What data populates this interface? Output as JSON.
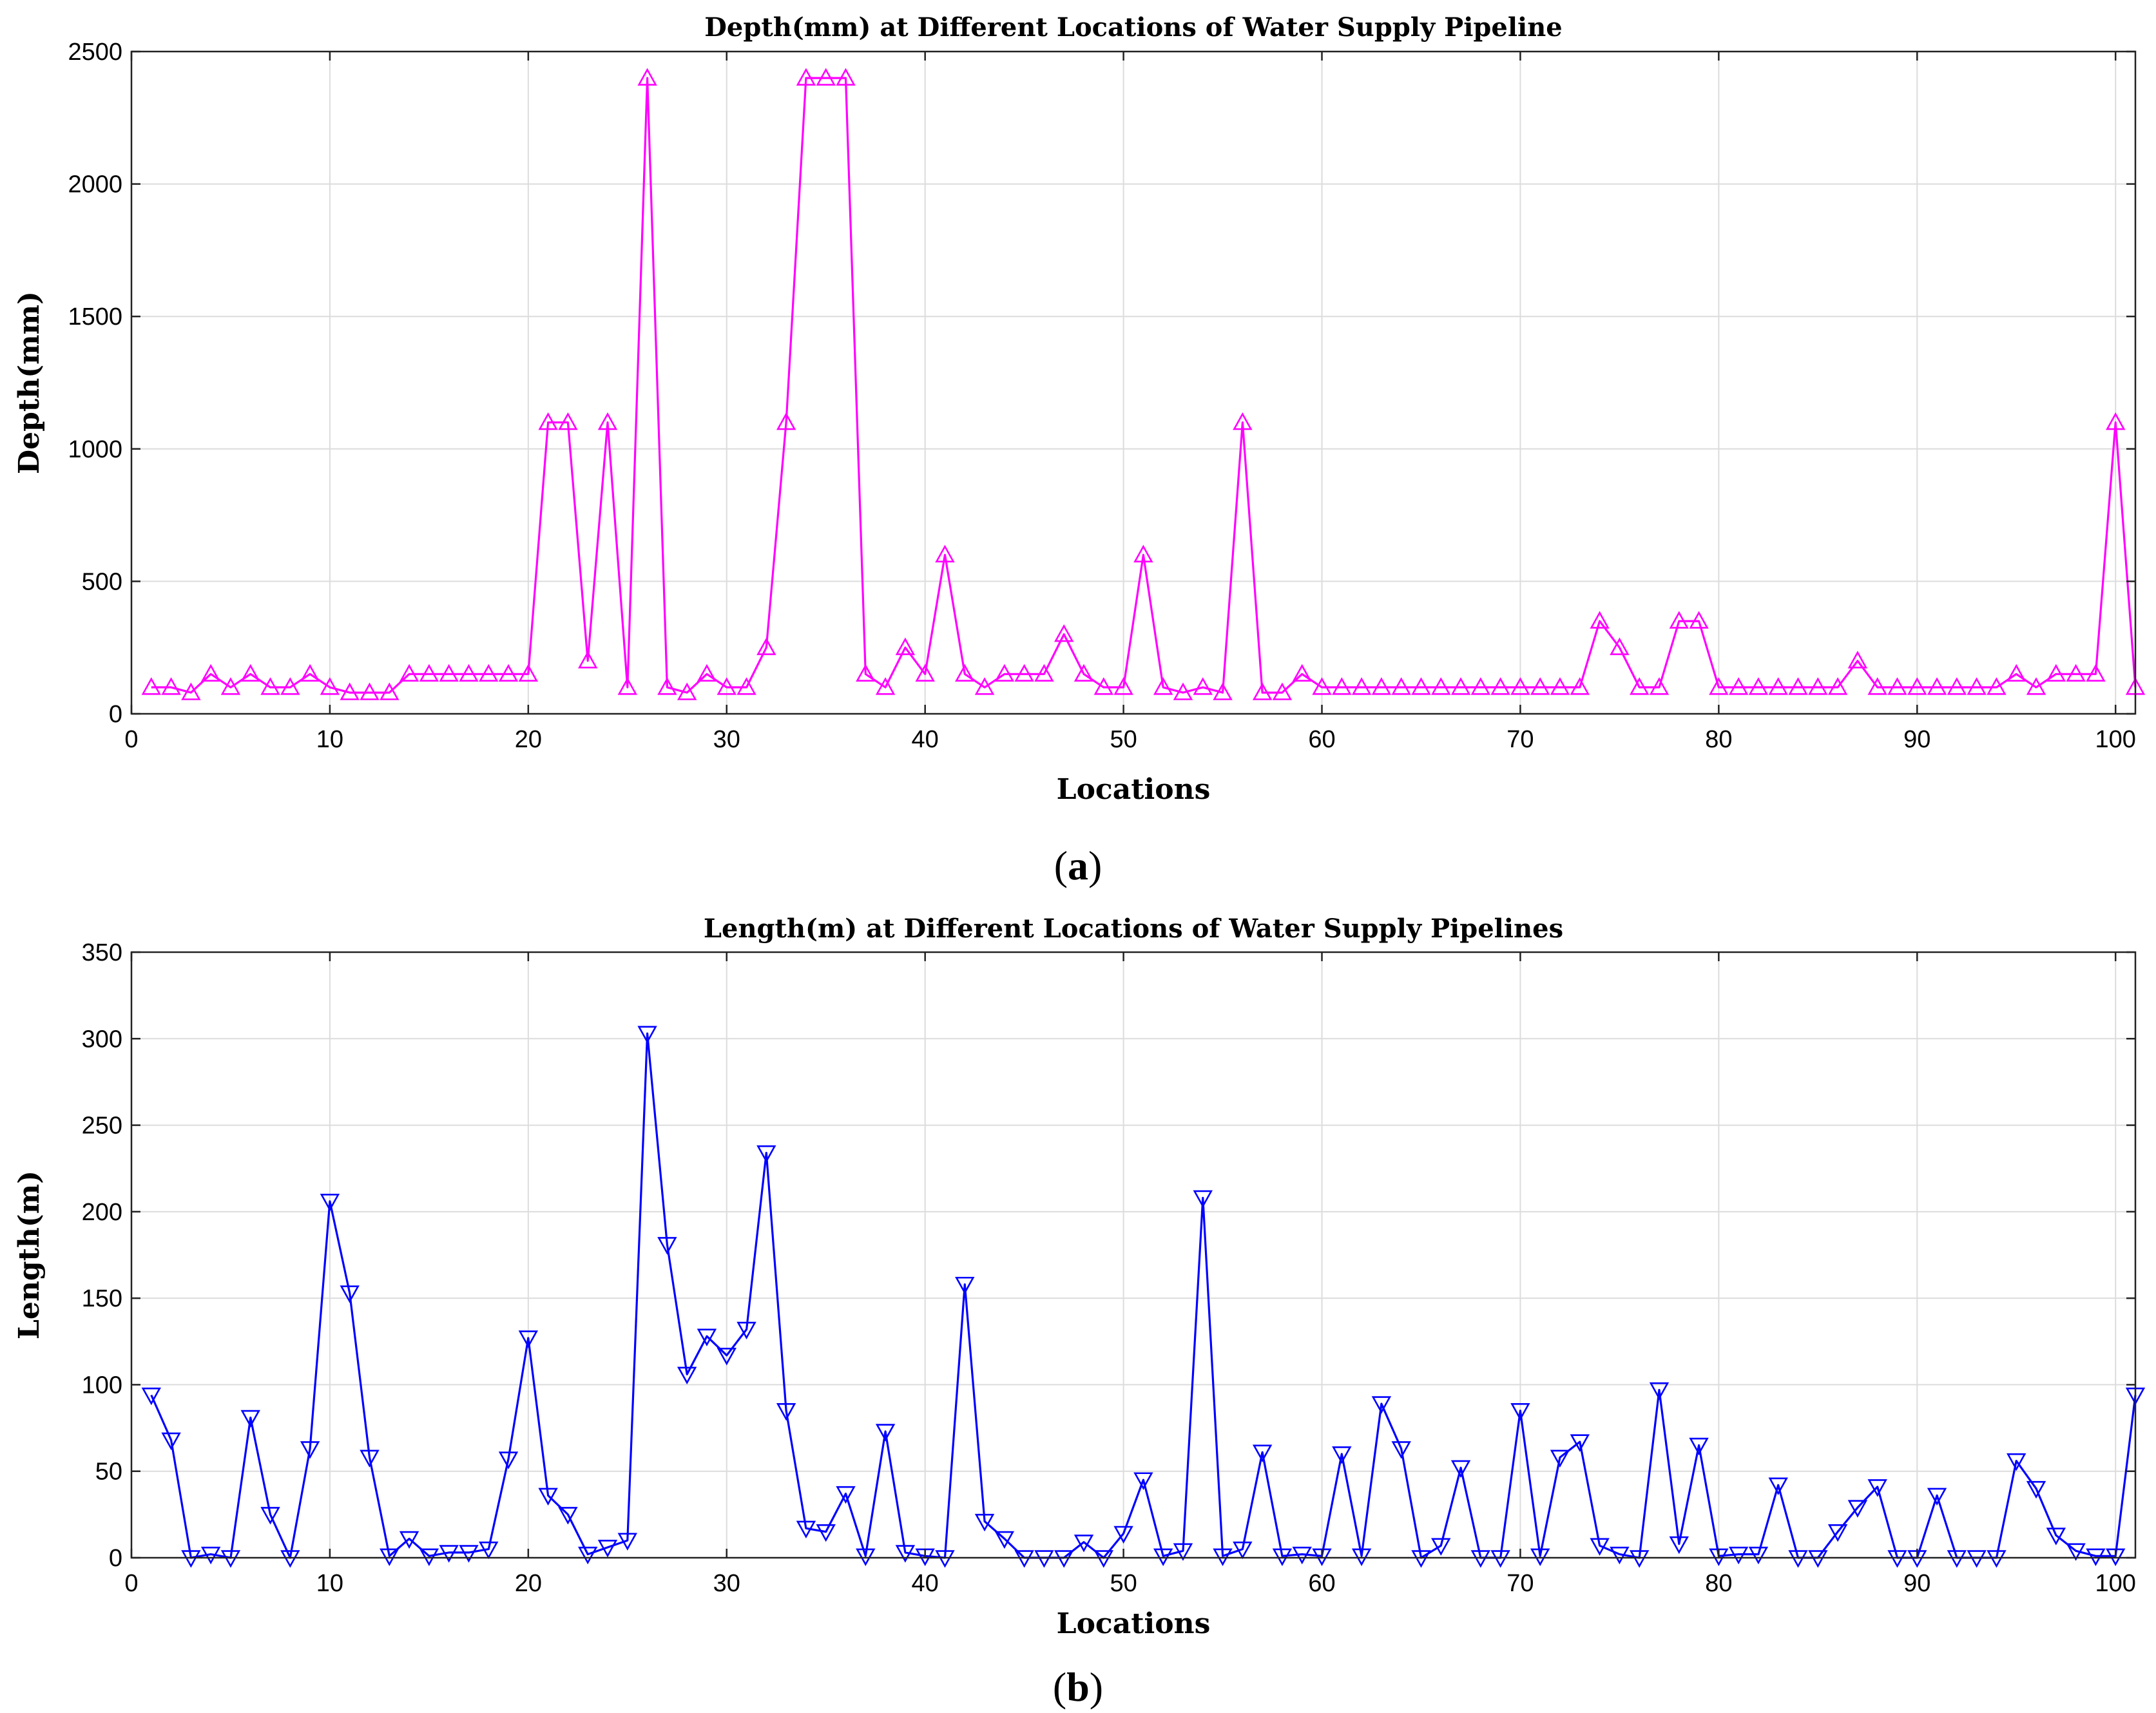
{
  "panels": [
    {
      "label": "a",
      "chart_data": {
        "type": "line",
        "title": "Depth(mm) at Different Locations of Water Supply Pipeline",
        "xlabel": "Locations",
        "ylabel": "Depth(mm)",
        "xlim": [
          0,
          101
        ],
        "ylim": [
          0,
          2500
        ],
        "xticks": [
          0,
          10,
          20,
          30,
          40,
          50,
          60,
          70,
          80,
          90,
          100
        ],
        "yticks": [
          0,
          500,
          1000,
          1500,
          2000,
          2500
        ],
        "grid": true,
        "marker": "triangle-up",
        "color": "#ff00ff",
        "series": [
          {
            "x": [
              1,
              2,
              3,
              4,
              5,
              6,
              7,
              8,
              9,
              10,
              11,
              12,
              13,
              14,
              15,
              16,
              17,
              18,
              19,
              20,
              21,
              22,
              23,
              24,
              25,
              26,
              27,
              28,
              29,
              30,
              31,
              32,
              33,
              34,
              35,
              36,
              37,
              38,
              39,
              40,
              41,
              42,
              43,
              44,
              45,
              46,
              47,
              48,
              49,
              50,
              51,
              52,
              53,
              54,
              55,
              56,
              57,
              58,
              59,
              60,
              61,
              62,
              63,
              64,
              65,
              66,
              67,
              68,
              69,
              70,
              71,
              72,
              73,
              74,
              75,
              76,
              77,
              78,
              79,
              80,
              81,
              82,
              83,
              84,
              85,
              86,
              87,
              88,
              89,
              90,
              91,
              92,
              93,
              94,
              95,
              96,
              97,
              98,
              99,
              100,
              101
            ],
            "values": [
              100,
              100,
              80,
              150,
              100,
              150,
              100,
              100,
              150,
              100,
              80,
              80,
              80,
              150,
              150,
              150,
              150,
              150,
              150,
              150,
              1100,
              1100,
              200,
              1100,
              100,
              2400,
              100,
              80,
              150,
              100,
              100,
              250,
              1100,
              2400,
              2400,
              2400,
              150,
              100,
              250,
              150,
              600,
              150,
              100,
              150,
              150,
              150,
              300,
              150,
              100,
              100,
              600,
              100,
              80,
              100,
              80,
              1100,
              80,
              80,
              150,
              100,
              100,
              100,
              100,
              100,
              100,
              100,
              100,
              100,
              100,
              100,
              100,
              100,
              100,
              350,
              250,
              100,
              100,
              350,
              350,
              100,
              100,
              100,
              100,
              100,
              100,
              100,
              200,
              100,
              100,
              100,
              100,
              100,
              100,
              100,
              150,
              100,
              150,
              150,
              150,
              1100,
              100
            ]
          }
        ]
      }
    },
    {
      "label": "b",
      "chart_data": {
        "type": "line",
        "title": "Length(m) at Different Locations of Water Supply Pipelines",
        "xlabel": "Locations",
        "ylabel": "Length(m)",
        "xlim": [
          0,
          101
        ],
        "ylim": [
          0,
          350
        ],
        "xticks": [
          0,
          10,
          20,
          30,
          40,
          50,
          60,
          70,
          80,
          90,
          100
        ],
        "yticks": [
          0,
          50,
          100,
          150,
          200,
          250,
          300,
          350
        ],
        "grid": true,
        "marker": "triangle-down",
        "color": "#0000ff",
        "series": [
          {
            "x": [
              1,
              2,
              3,
              4,
              5,
              6,
              7,
              8,
              9,
              10,
              11,
              12,
              13,
              14,
              15,
              16,
              17,
              18,
              19,
              20,
              21,
              22,
              23,
              24,
              25,
              26,
              27,
              28,
              29,
              30,
              31,
              32,
              33,
              34,
              35,
              36,
              37,
              38,
              39,
              40,
              41,
              42,
              43,
              44,
              45,
              46,
              47,
              48,
              49,
              50,
              51,
              52,
              53,
              54,
              55,
              56,
              57,
              58,
              59,
              60,
              61,
              62,
              63,
              64,
              65,
              66,
              67,
              68,
              69,
              70,
              71,
              72,
              73,
              74,
              75,
              76,
              77,
              78,
              79,
              80,
              81,
              82,
              83,
              84,
              85,
              86,
              87,
              88,
              89,
              90,
              91,
              92,
              93,
              94,
              95,
              96,
              97,
              98,
              99,
              100,
              101
            ],
            "values": [
              94,
              68,
              0,
              2,
              0,
              81,
              25,
              0,
              63,
              206,
              153,
              58,
              1,
              11,
              1,
              3,
              3,
              5,
              57,
              127,
              36,
              25,
              2,
              6,
              10,
              303,
              181,
              106,
              128,
              117,
              132,
              234,
              85,
              17,
              15,
              37,
              1,
              73,
              3,
              1,
              0,
              158,
              21,
              11,
              0,
              0,
              0,
              9,
              0,
              14,
              45,
              1,
              4,
              208,
              1,
              5,
              61,
              1,
              2,
              1,
              60,
              1,
              89,
              63,
              0,
              7,
              52,
              0,
              0,
              85,
              1,
              58,
              67,
              7,
              2,
              0,
              97,
              8,
              65,
              1,
              2,
              2,
              42,
              0,
              0,
              15,
              29,
              41,
              0,
              0,
              36,
              0,
              0,
              0,
              56,
              40,
              13,
              4,
              1,
              1,
              94
            ]
          }
        ]
      }
    }
  ]
}
